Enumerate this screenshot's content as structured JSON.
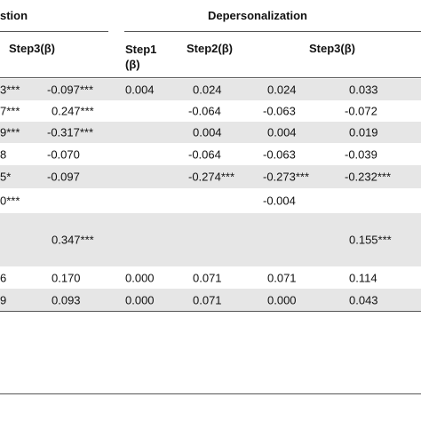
{
  "header": {
    "group_left": "stion",
    "group_right": "Depersonalization",
    "columns": [
      "Step3(β)",
      "Step1 (β)",
      "Step2(β)",
      "Step3(β)"
    ]
  },
  "table": {
    "rows": [
      [
        "3***",
        "-0.097***",
        "0.004",
        "0.024",
        "0.024",
        "0.033"
      ],
      [
        "7***",
        "0.247***",
        null,
        "-0.064",
        "-0.063",
        "-0.072"
      ],
      [
        "9***",
        "-0.317***",
        null,
        "0.004",
        "0.004",
        "0.019"
      ],
      [
        "8",
        "-0.070",
        null,
        "-0.064",
        "-0.063",
        "-0.039"
      ],
      [
        "5*",
        "-0.097",
        null,
        "-0.274***",
        "-0.273***",
        "-0.232***"
      ],
      [
        "0***",
        null,
        null,
        null,
        "-0.004",
        null
      ],
      [
        null,
        "0.347***",
        null,
        null,
        null,
        "0.155***"
      ],
      [
        "6",
        "0.170",
        "0.000",
        "0.071",
        "0.071",
        "0.114"
      ],
      [
        "9",
        "0.093",
        "0.000",
        "0.071",
        "0.000",
        "0.043"
      ]
    ]
  }
}
